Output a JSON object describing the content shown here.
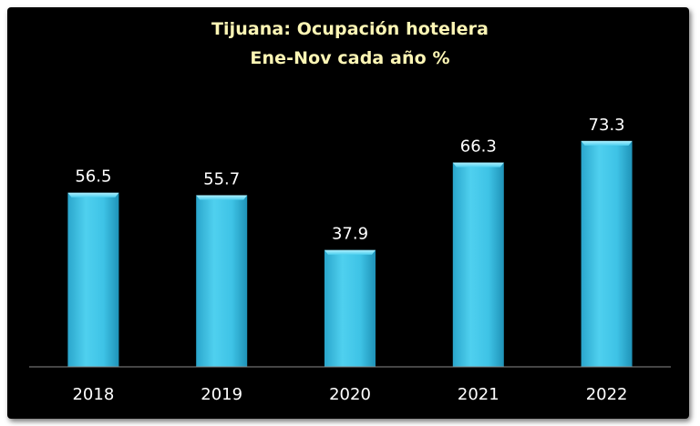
{
  "chart_data": {
    "type": "bar",
    "title": "Tijuana: Ocupación hotelera",
    "subtitle": "Ene-Nov cada año %",
    "categories": [
      "2018",
      "2019",
      "2020",
      "2021",
      "2022"
    ],
    "values": [
      56.5,
      55.7,
      37.9,
      66.3,
      73.3
    ],
    "value_labels": [
      "56.5",
      "55.7",
      "37.9",
      "66.3",
      "73.3"
    ],
    "xlabel": "",
    "ylabel": "",
    "ylim": [
      0,
      100
    ],
    "grid": false,
    "legend": "none",
    "colors": {
      "background": "#000000",
      "bar": "#3fc6e8",
      "title": "#fdf6b5",
      "labels": "#ffffff",
      "axis": "#8a8a8a"
    }
  }
}
